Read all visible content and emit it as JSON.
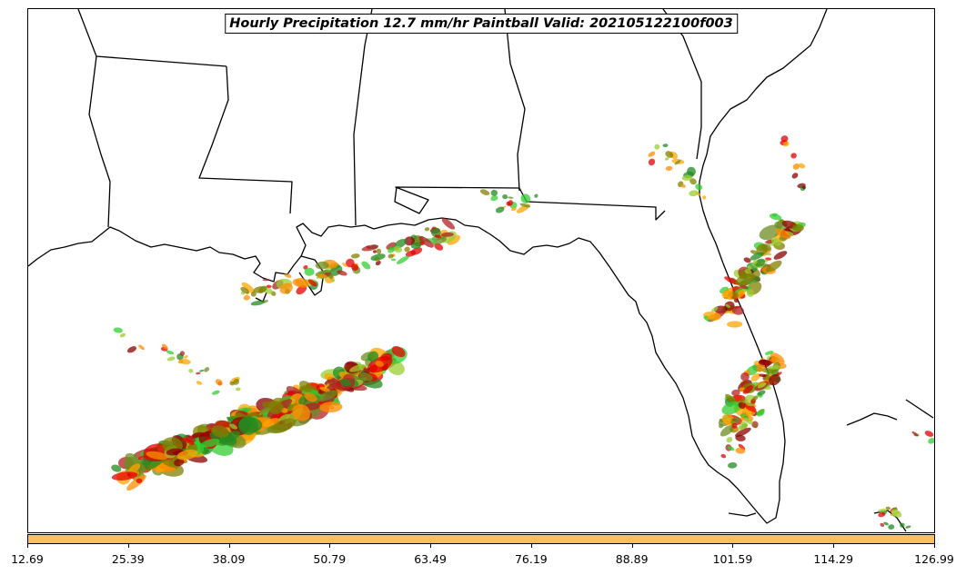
{
  "title": "Hourly Precipitation 12.7 mm/hr Paintball Valid: 202105122100f003",
  "colors": {
    "colorbar": "#FFBE5A",
    "coast": "#000000",
    "members": [
      "#E60000",
      "#FF8C00",
      "#228B22",
      "#32CD32",
      "#8B0000",
      "#9ACD32",
      "#808000",
      "#B22222",
      "#FFA500",
      "#6B8E23"
    ]
  },
  "colorbar": {
    "ticks": [
      "12.69",
      "25.39",
      "38.09",
      "50.79",
      "63.49",
      "76.19",
      "88.89",
      "101.59",
      "114.29",
      "126.99"
    ],
    "range": [
      12.69,
      126.99
    ]
  }
}
